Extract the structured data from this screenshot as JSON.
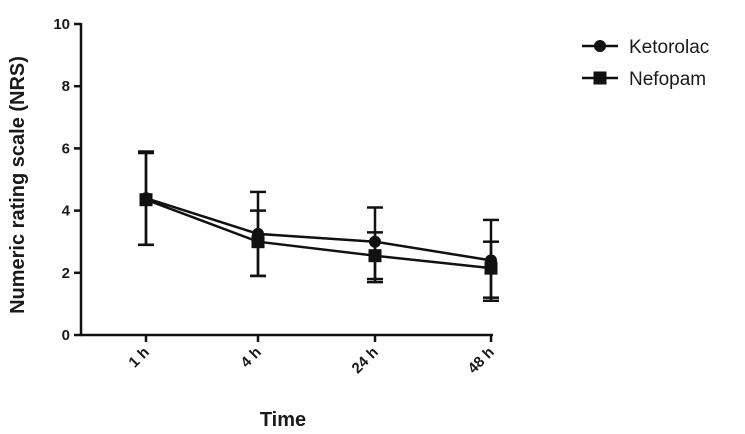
{
  "chart_data": {
    "type": "line",
    "title": "",
    "xlabel": "Time",
    "ylabel": "Numeric rating scale (NRS)",
    "categories": [
      "1 h",
      "4 h",
      "24 h",
      "48 h"
    ],
    "ylim": [
      0,
      10
    ],
    "yticks": [
      0,
      2,
      4,
      6,
      8,
      10
    ],
    "legend_position": "top-right",
    "series": [
      {
        "name": "Ketorolac",
        "marker": "circle",
        "values": [
          4.4,
          3.25,
          3.0,
          2.4
        ],
        "error_upper": [
          5.9,
          4.6,
          4.1,
          3.7
        ],
        "error_lower": [
          2.9,
          1.9,
          1.8,
          1.1
        ]
      },
      {
        "name": "Nefopam",
        "marker": "square",
        "values": [
          4.35,
          3.0,
          2.55,
          2.15
        ],
        "error_upper": [
          5.85,
          4.0,
          3.3,
          3.0
        ],
        "error_lower": [
          2.9,
          1.9,
          1.7,
          1.2
        ]
      }
    ]
  }
}
